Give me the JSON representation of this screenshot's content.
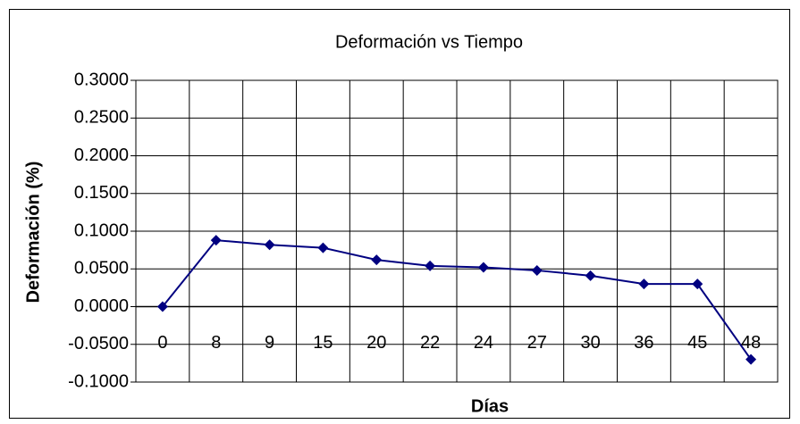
{
  "chart_data": {
    "type": "line",
    "title": "Deformación vs Tiempo",
    "x_label": "Días",
    "y_label": "Deformación (%)",
    "categories": [
      "0",
      "8",
      "9",
      "15",
      "20",
      "22",
      "24",
      "27",
      "30",
      "36",
      "45",
      "48"
    ],
    "series": [
      {
        "name": "Deformación",
        "color": "#000080",
        "values": [
          0,
          0.088,
          0.082,
          0.078,
          0.062,
          0.054,
          0.052,
          0.048,
          0.041,
          0.03,
          0.03,
          -0.07
        ]
      }
    ],
    "ylim": [
      -0.1,
      0.3
    ],
    "yticks": [
      {
        "value": -0.1,
        "label": "-0.1000"
      },
      {
        "value": -0.05,
        "label": "-0.0500"
      },
      {
        "value": 0,
        "label": "0.0000"
      },
      {
        "value": 0.05,
        "label": "0.0500"
      },
      {
        "value": 0.1,
        "label": "0.1000"
      },
      {
        "value": 0.15,
        "label": "0.1500"
      },
      {
        "value": 0.2,
        "label": "0.2000"
      },
      {
        "value": 0.25,
        "label": "0.2500"
      },
      {
        "value": 0.3,
        "label": "0.3000"
      }
    ],
    "grid": true
  }
}
